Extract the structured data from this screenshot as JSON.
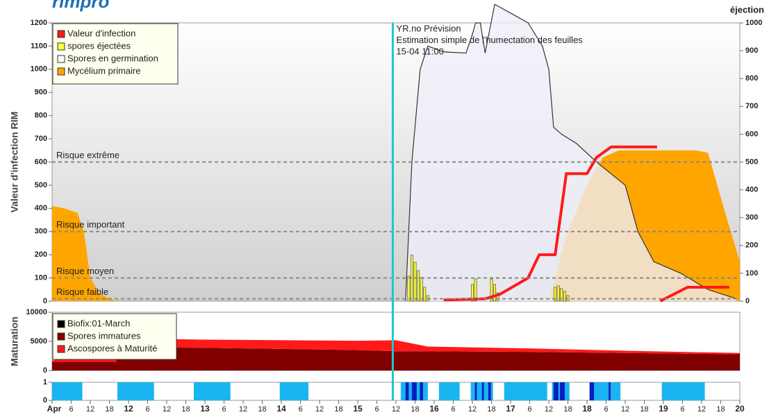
{
  "logo": "rimpro",
  "x_axis": {
    "xlim": [
      0,
      216
    ],
    "xticks": [
      {
        "value": 0,
        "label": "Apr"
      },
      6,
      12,
      18,
      {
        "value": 24,
        "label": "12"
      },
      {
        "value": 30,
        "label": "6"
      },
      {
        "value": 36,
        "label": "12"
      },
      {
        "value": 42,
        "label": "18"
      },
      {
        "value": 48,
        "label": "13"
      },
      {
        "value": 54,
        "label": "6"
      },
      {
        "value": 60,
        "label": "12"
      },
      {
        "value": 66,
        "label": "18"
      },
      {
        "value": 72,
        "label": "14"
      },
      {
        "value": 78,
        "label": "6"
      },
      {
        "value": 84,
        "label": "12"
      },
      {
        "value": 90,
        "label": "18"
      },
      {
        "value": 96,
        "label": "15"
      },
      {
        "value": 102,
        "label": "6"
      },
      {
        "value": 108,
        "label": "12"
      },
      {
        "value": 114,
        "label": "18"
      },
      {
        "value": 120,
        "label": "16"
      },
      {
        "value": 126,
        "label": "6"
      },
      {
        "value": 132,
        "label": "12"
      },
      {
        "value": 138,
        "label": "18"
      },
      {
        "value": 144,
        "label": "17"
      },
      {
        "value": 150,
        "label": "6"
      },
      {
        "value": 156,
        "label": "12"
      },
      {
        "value": 162,
        "label": "18"
      },
      {
        "value": 168,
        "label": "18"
      },
      {
        "value": 174,
        "label": "6"
      },
      {
        "value": 180,
        "label": "12"
      },
      {
        "value": 186,
        "label": "18"
      },
      {
        "value": 192,
        "label": "19"
      },
      {
        "value": 198,
        "label": "6"
      },
      {
        "value": 204,
        "label": "12"
      },
      {
        "value": 210,
        "label": "18"
      },
      {
        "value": 216,
        "label": "20"
      }
    ],
    "now": 107
  },
  "chart_data": [
    {
      "type": "combo",
      "ylabel": "Valeur d'infection RIM",
      "y2label": "éjection",
      "ylim": [
        0,
        1200
      ],
      "yticks": [
        0,
        100,
        200,
        300,
        400,
        500,
        600,
        700,
        800,
        900,
        1000,
        1100,
        1200
      ],
      "y2lim": [
        0,
        1000
      ],
      "y2ticks": [
        0,
        100,
        200,
        300,
        400,
        500,
        600,
        700,
        800,
        900,
        1000
      ],
      "thresholds": [
        {
          "value": 600,
          "label": "Risque extrême"
        },
        {
          "value": 300,
          "label": "Risque important"
        },
        {
          "value": 100,
          "label": "Risque moyen"
        },
        {
          "value": 10,
          "label": "Risque faible"
        }
      ],
      "annotations": [
        "YR.no Prévision",
        "Estimation simple de l'humectation des feuilles",
        "15-04 11:00"
      ],
      "series": [
        {
          "name": "Valeur d'infection",
          "color": "#ff1a1a",
          "type": "line",
          "x": [
            123,
            136,
            140.7,
            149.5,
            153,
            158,
            161.5,
            168,
            171,
            175.6,
            190,
            190.5,
            191,
            199.6,
            212.7
          ],
          "values": [
            5,
            10,
            30,
            100,
            200,
            200,
            550,
            550,
            620,
            665,
            665,
            null,
            0,
            60,
            60
          ]
        },
        {
          "name": "spores éjectées",
          "color": "#ffff33",
          "type": "bar",
          "axis": "y2",
          "x": [
            112,
            113,
            114,
            115,
            116,
            117,
            118,
            132,
            133,
            138,
            139,
            140,
            158,
            159,
            160,
            161,
            162
          ],
          "values": [
            90,
            165,
            140,
            110,
            85,
            50,
            20,
            60,
            80,
            80,
            60,
            30,
            50,
            55,
            45,
            35,
            20
          ]
        },
        {
          "name": "Spores en germination",
          "color": "#ffffff",
          "type": "line_area",
          "x": [
            111,
            113,
            115.6,
            118,
            123,
            130,
            132,
            133,
            134.5,
            136,
            139,
            143,
            149.5,
            154,
            156,
            157.5,
            160,
            164.7,
            171,
            180,
            184,
            189,
            197.5,
            206,
            215
          ],
          "values": [
            0,
            600,
            1000,
            1100,
            1075,
            1070,
            1150,
            1200,
            1200,
            1070,
            1280,
            1250,
            1200,
            1100,
            1000,
            750,
            720,
            680,
            600,
            500,
            300,
            170,
            120,
            50,
            10
          ]
        },
        {
          "name": "Mycélium primaire",
          "color": "#ffa500",
          "type": "area",
          "x": [
            0,
            4,
            8,
            10,
            12,
            15,
            20,
            156,
            162,
            169,
            173,
            178,
            202,
            206,
            211,
            216
          ],
          "values": [
            410,
            400,
            380,
            300,
            100,
            30,
            0,
            0,
            300,
            530,
            620,
            650,
            650,
            640,
            400,
            170
          ]
        }
      ]
    },
    {
      "type": "stacked_area",
      "ylabel": "Maturation",
      "ylim": [
        0,
        10000
      ],
      "yticks": [
        0,
        5000,
        10000
      ],
      "biofix": {
        "label": "Biofix:01-March",
        "color": "#000000"
      },
      "x": [
        0,
        20,
        22,
        48,
        96,
        108,
        118,
        150,
        180,
        216
      ],
      "series": [
        {
          "name": "Spores immatures",
          "color": "#800000",
          "values": [
            1500,
            1500,
            4000,
            3900,
            3500,
            3300,
            3300,
            3200,
            3000,
            2800
          ]
        },
        {
          "name": "Ascospores à Maturité",
          "color": "#ff1a1a",
          "values": [
            200,
            3500,
            1500,
            1400,
            1600,
            1900,
            800,
            600,
            400,
            200
          ]
        }
      ]
    },
    {
      "type": "periods",
      "ylim": [
        0,
        1
      ],
      "yticks": [
        0,
        1
      ],
      "series": [
        {
          "color": "#1ab4f0",
          "periods": [
            [
              0,
              9.5
            ],
            [
              20.5,
              32
            ],
            [
              44.5,
              56
            ],
            [
              71.5,
              80.5
            ],
            [
              109.5,
              118
            ],
            [
              121.5,
              128
            ],
            [
              131.5,
              138.5
            ],
            [
              142,
              155.5
            ],
            [
              157,
              162.5
            ],
            [
              169.5,
              178.5
            ],
            [
              191.5,
              205
            ]
          ]
        },
        {
          "color": "#0a1ec0",
          "periods": [
            [
              111,
              112
            ],
            [
              113,
              114.5
            ],
            [
              115.5,
              116.5
            ],
            [
              132.8,
              133.4
            ],
            [
              135,
              135.6
            ],
            [
              137,
              137.8
            ],
            [
              157.5,
              159
            ],
            [
              159.5,
              161
            ],
            [
              168.8,
              170.2
            ],
            [
              174.8,
              175.4
            ]
          ]
        }
      ]
    }
  ]
}
